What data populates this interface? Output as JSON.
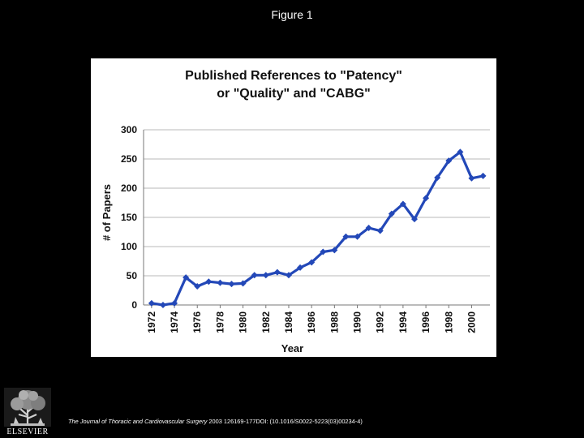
{
  "figure_label": "Figure 1",
  "colors": {
    "series": "#2348b8",
    "grid": "#b8b8b8",
    "panel": "#ffffff",
    "background": "#000000"
  },
  "chart_data": {
    "type": "line",
    "title_lines": [
      "Published References to \"Patency\"",
      "or \"Quality\" and \"CABG\""
    ],
    "xlabel": "Year",
    "ylabel": "# of Papers",
    "ylim": [
      0,
      300
    ],
    "yticks": [
      0,
      50,
      100,
      150,
      200,
      250,
      300
    ],
    "x_tick_labels": [
      "1972",
      "1974",
      "1976",
      "1978",
      "1980",
      "1982",
      "1984",
      "1986",
      "1988",
      "1990",
      "1992",
      "1994",
      "1996",
      "1998",
      "2000"
    ],
    "grid": "horizontal",
    "series": [
      {
        "name": "# of Papers",
        "x": [
          1972,
          1973,
          1974,
          1975,
          1976,
          1977,
          1978,
          1979,
          1980,
          1981,
          1982,
          1983,
          1984,
          1985,
          1986,
          1987,
          1988,
          1989,
          1990,
          1991,
          1992,
          1993,
          1994,
          1995,
          1996,
          1997,
          1998,
          1999,
          2000,
          2001
        ],
        "values": [
          3,
          0,
          3,
          47,
          32,
          40,
          38,
          36,
          37,
          51,
          51,
          56,
          51,
          64,
          73,
          91,
          94,
          117,
          117,
          132,
          127,
          156,
          173,
          147,
          183,
          218,
          247,
          262,
          217,
          221
        ]
      }
    ]
  },
  "footer": {
    "journal": "The Journal of Thoracic and Cardiovascular Surgery",
    "details": " 2003 126169-177DOI: (10.1016/S0022-5223(03)00234-4)"
  },
  "logo": {
    "text": "ELSEVIER",
    "icon": "elsevier-tree-icon"
  }
}
